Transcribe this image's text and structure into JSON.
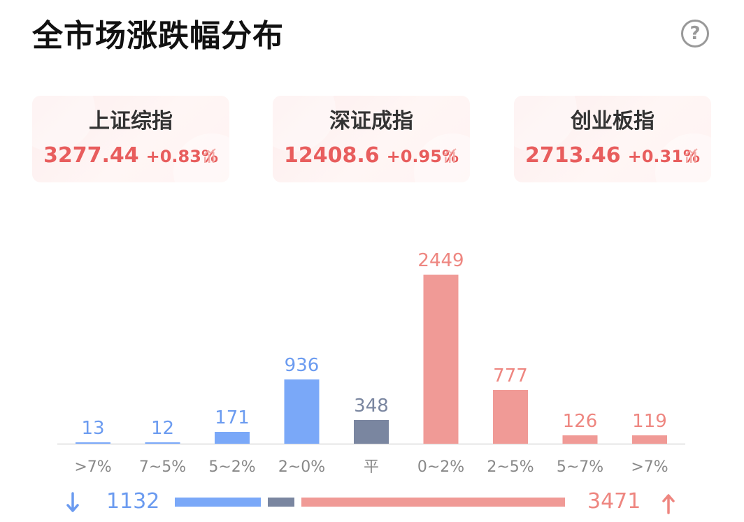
{
  "title": "全市场涨跌幅分布",
  "help_symbol": "?",
  "icons": {
    "help": "question-circle-icon",
    "trend": "trend-up-icon",
    "down": "down-arrow-icon",
    "up": "up-arrow-icon"
  },
  "colors": {
    "fall": "#7aa8f8",
    "flat": "#7a86a0",
    "rise": "#f09a96",
    "index_text": "#e85d5d",
    "fall_text": "#6b9bf0",
    "rise_text": "#ee8680"
  },
  "indices": [
    {
      "name": "上证综指",
      "value": "3277.44",
      "change": "+0.83%"
    },
    {
      "name": "深证成指",
      "value": "12408.6",
      "change": "+0.95%"
    },
    {
      "name": "创业板指",
      "value": "2713.46",
      "change": "+0.31%"
    }
  ],
  "chart_data": {
    "type": "bar",
    "categories": [
      ">7%",
      "7~5%",
      "5~2%",
      "2~0%",
      "平",
      "0~2%",
      "2~5%",
      "5~7%",
      ">7%"
    ],
    "values": [
      13,
      12,
      171,
      936,
      348,
      2449,
      777,
      126,
      119
    ],
    "groups": [
      "fall",
      "fall",
      "fall",
      "fall",
      "flat",
      "rise",
      "rise",
      "rise",
      "rise"
    ],
    "ylim": [
      0,
      2449
    ],
    "grid": false,
    "legend": "none"
  },
  "summary": {
    "fall_total": "1132",
    "rise_total": "3471",
    "flat_total": 348
  }
}
